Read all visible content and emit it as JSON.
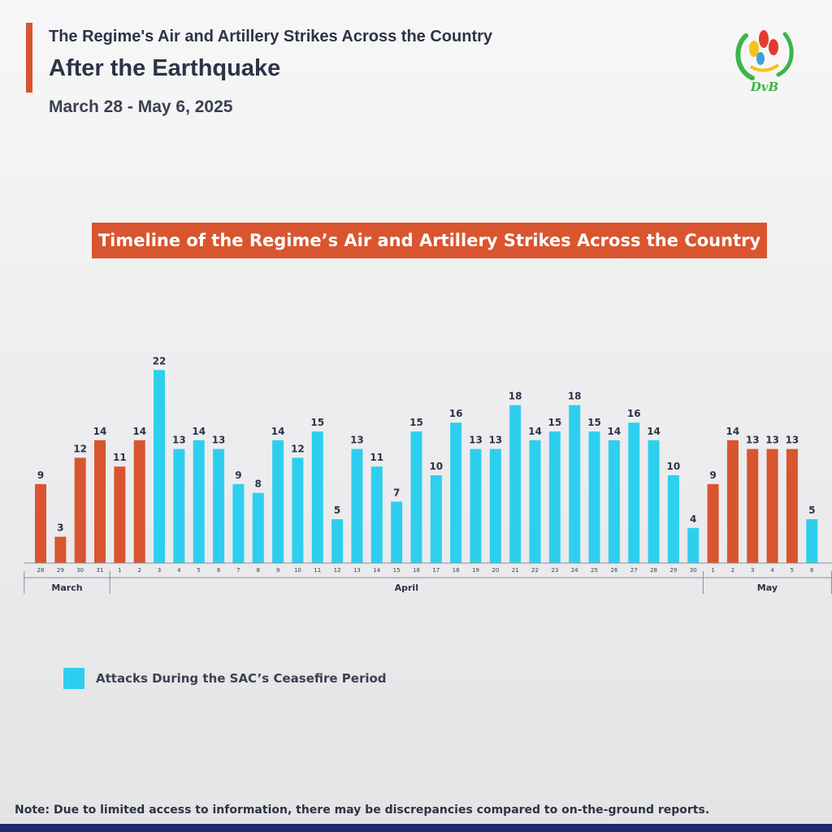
{
  "header": {
    "title_line1": "The Regime's Air and Artillery Strikes Across the Country",
    "title_line2": "After the Earthquake",
    "subtitle": "March 28 - May 6, 2025",
    "logo_text": "DvB"
  },
  "banner": {
    "label": "Timeline of the Regime’s Air and Artillery Strikes Across the Country"
  },
  "legend": {
    "label": "Attacks During the SAC’s Ceasefire Period"
  },
  "footnote": "Note: Due to limited access to information, there may be discrepancies compared to on-the-ground reports.",
  "colors": {
    "ceasefire": "#2ecfee",
    "other": "#d9552f",
    "text": "#2c3346",
    "banner": "#d9552f"
  },
  "chart_data": {
    "type": "bar",
    "title": "Timeline of the Regime’s Air and Artillery Strikes Across the Country",
    "xlabel": "",
    "ylabel": "",
    "ylim": [
      0,
      22
    ],
    "grid": false,
    "legend": "bottom-left",
    "categories": [
      "28",
      "29",
      "30",
      "31",
      "1",
      "2",
      "3",
      "4",
      "5",
      "6",
      "7",
      "8",
      "9",
      "10",
      "11",
      "12",
      "13",
      "14",
      "15",
      "16",
      "17",
      "18",
      "19",
      "20",
      "21",
      "22",
      "23",
      "24",
      "25",
      "26",
      "27",
      "28",
      "29",
      "30",
      "1",
      "2",
      "3",
      "4",
      "5",
      "6"
    ],
    "values": [
      9,
      3,
      12,
      14,
      11,
      14,
      22,
      13,
      14,
      13,
      9,
      8,
      14,
      12,
      15,
      5,
      13,
      11,
      7,
      15,
      10,
      16,
      13,
      13,
      18,
      14,
      15,
      18,
      15,
      14,
      16,
      14,
      10,
      4,
      9,
      14,
      13,
      13,
      13,
      5
    ],
    "ceasefire": [
      false,
      false,
      false,
      false,
      false,
      false,
      true,
      true,
      true,
      true,
      true,
      true,
      true,
      true,
      true,
      true,
      true,
      true,
      true,
      true,
      true,
      true,
      true,
      true,
      true,
      true,
      true,
      true,
      true,
      true,
      true,
      true,
      true,
      true,
      false,
      false,
      false,
      false,
      false,
      true
    ],
    "months": [
      {
        "label": "March",
        "start": 0,
        "end": 3
      },
      {
        "label": "April",
        "start": 4,
        "end": 33
      },
      {
        "label": "May",
        "start": 34,
        "end": 39
      }
    ]
  }
}
